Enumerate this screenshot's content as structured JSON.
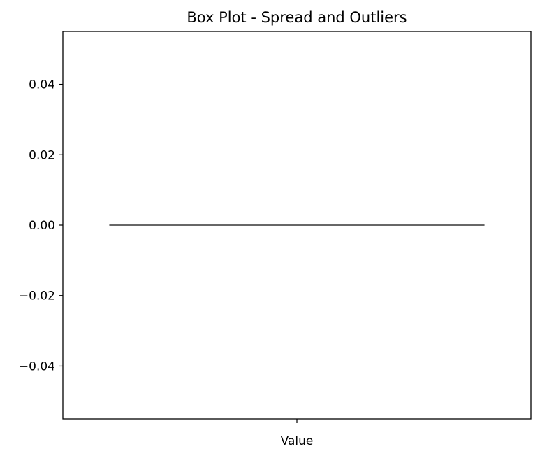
{
  "chart_data": {
    "type": "box",
    "title": "Box Plot - Spread and Outliers",
    "xlabel": "",
    "ylabel": "",
    "categories": [
      "Value"
    ],
    "series": [
      {
        "category": "Value",
        "min": 0.0,
        "q1": 0.0,
        "median": 0.0,
        "q3": 0.0,
        "max": 0.0,
        "outliers": []
      }
    ],
    "ylim": [
      -0.055,
      0.055
    ],
    "yticks": [
      -0.04,
      -0.02,
      0.0,
      0.02,
      0.04
    ],
    "ytick_labels": [
      "−0.04",
      "−0.02",
      "0.00",
      "0.02",
      "0.04"
    ],
    "grid": false,
    "colors": {
      "box": "#333333",
      "axis": "#000000"
    }
  }
}
